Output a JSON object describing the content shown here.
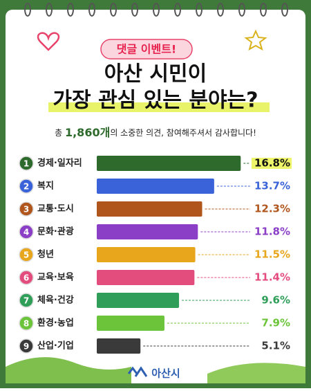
{
  "chart_data": {
    "type": "bar",
    "orientation": "horizontal",
    "badge": "댓글 이벤트!",
    "title_line1": "아산 시민이",
    "title_line2": "가장 관심 있는 분야는?",
    "note_prefix": "총 ",
    "note_count": "1,860개",
    "note_suffix": "의 소중한 의견, 참여해주셔서 감사합니다!",
    "ranks": [
      1,
      2,
      3,
      4,
      5,
      6,
      7,
      8,
      9
    ],
    "categories": [
      "경제·일자리",
      "복지",
      "교통·도시",
      "문화·관광",
      "청년",
      "교육·보육",
      "체육·건강",
      "환경·농업",
      "산업·기업"
    ],
    "values": [
      16.8,
      13.7,
      12.3,
      11.8,
      11.5,
      11.4,
      9.6,
      7.9,
      5.1
    ],
    "value_labels": [
      "16.8%",
      "13.7%",
      "12.3%",
      "11.8%",
      "11.5%",
      "11.4%",
      "9.6%",
      "7.9%",
      "5.1%"
    ],
    "colors": [
      "#2e6a2c",
      "#3b63d9",
      "#b0561c",
      "#8b3fc6",
      "#e8a61c",
      "#e34d7e",
      "#2f9e58",
      "#6cc43a",
      "#3a3a3a"
    ],
    "logo": "아산시"
  }
}
